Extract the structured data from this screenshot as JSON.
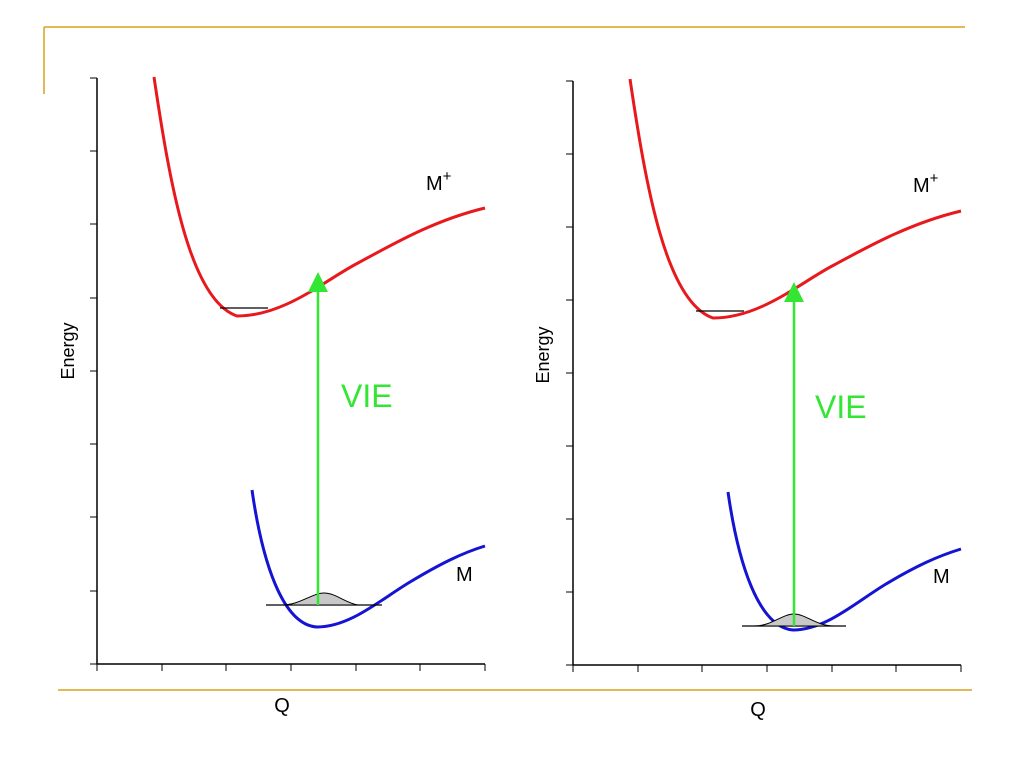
{
  "slide": {
    "rule_color": "#d9a21b"
  },
  "diagrams": [
    {
      "ylabel": "Energy",
      "xlabel": "Q",
      "upper_state_label": "M",
      "upper_state_sup": "+",
      "lower_state_label": "M",
      "arrow_label": "VIE",
      "colors": {
        "upper": "#e8191d",
        "lower": "#1414d2",
        "arrow": "#33e633"
      }
    },
    {
      "ylabel": "Energy",
      "xlabel": "Q",
      "upper_state_label": "M",
      "upper_state_sup": "+",
      "lower_state_label": "M",
      "arrow_label": "VIE",
      "colors": {
        "upper": "#e8191d",
        "lower": "#1414d2",
        "arrow": "#33e633"
      }
    }
  ]
}
